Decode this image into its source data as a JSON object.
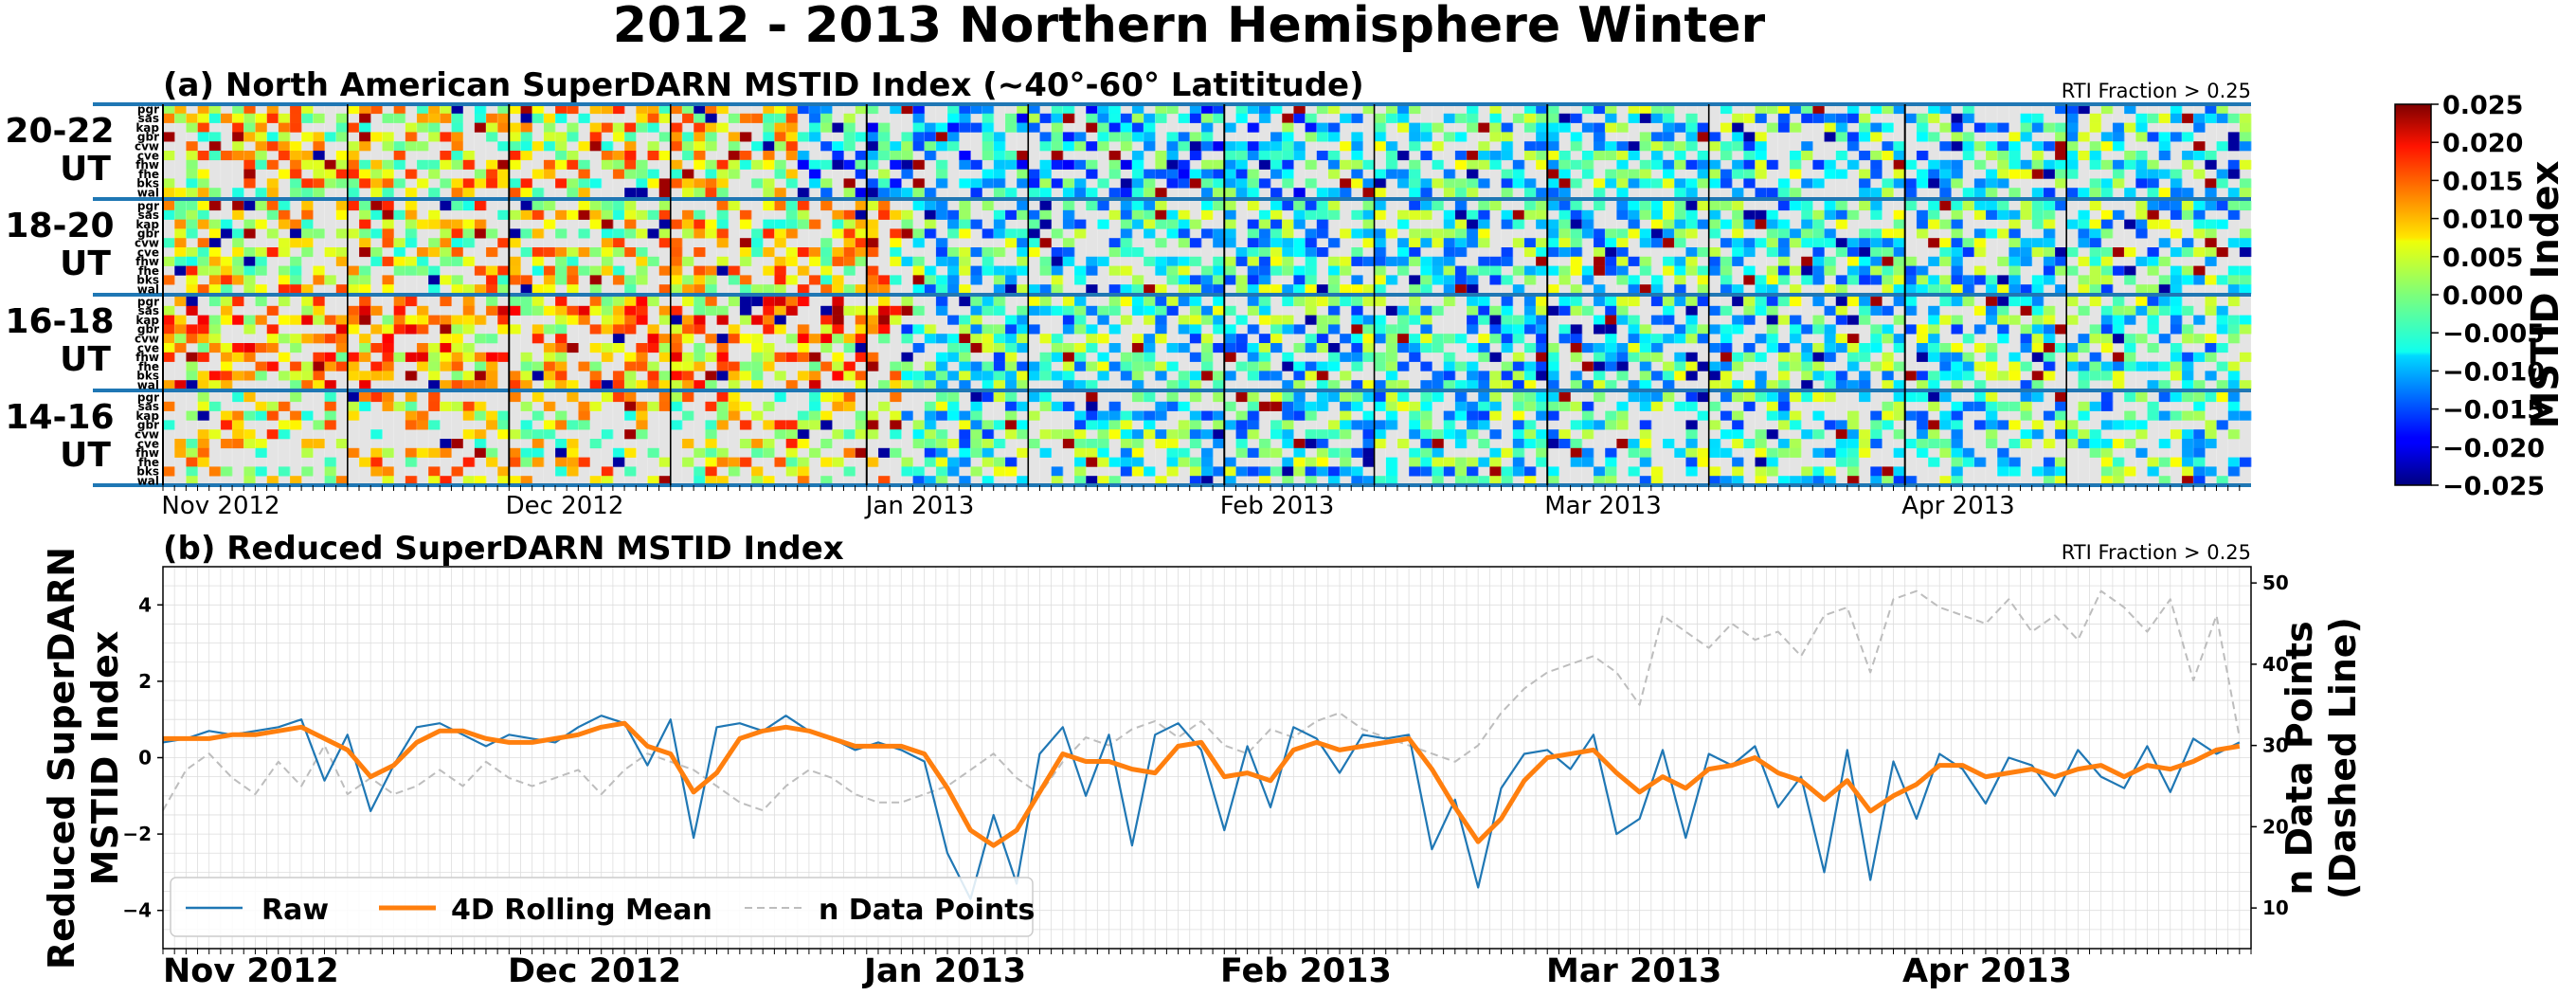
{
  "title": "2012 - 2013 Northern Hemisphere Winter",
  "chart_data": [
    {
      "type": "heatmap",
      "title": "(a) North American SuperDARN MSTID Index (~40°-60° Latititude)",
      "annotation": "RTI Fraction > 0.25",
      "date_range": [
        "2012-11-01",
        "2013-04-30"
      ],
      "x_tick_labels": [
        "Nov 2012",
        "Dec 2012",
        "Jan 2013",
        "Feb 2013",
        "Mar 2013",
        "Apr 2013"
      ],
      "radar_labels": [
        "pgr",
        "sas",
        "kap",
        "gbr",
        "cvw",
        "cve",
        "fhw",
        "fhe",
        "bks",
        "wal"
      ],
      "row_groups": [
        {
          "label_top": "20-22",
          "label_bottom": "UT"
        },
        {
          "label_top": "18-20",
          "label_bottom": "UT"
        },
        {
          "label_top": "16-18",
          "label_bottom": "UT"
        },
        {
          "label_top": "14-16",
          "label_bottom": "UT"
        }
      ],
      "colorbar": {
        "label": "MSTID Index",
        "colormap": "jet",
        "range": [
          -0.025,
          0.025
        ],
        "ticks": [
          "0.025",
          "0.020",
          "0.015",
          "0.010",
          "0.005",
          "0.000",
          "−0.005",
          "−0.010",
          "−0.015",
          "−0.020",
          "−0.025"
        ]
      },
      "missing_color": "#e4e4e4",
      "note": "Cell values are shown as a color field; individual cell values are not legible at this resolution."
    },
    {
      "type": "line",
      "title": "(b) Reduced SuperDARN MSTID Index",
      "annotation": "RTI Fraction > 0.25",
      "ylabel": "Reduced SuperDARN MSTID Index",
      "y2label": "n Data Points (Dashed Line)",
      "ylim": [
        -5,
        5
      ],
      "y2lim": [
        5,
        52
      ],
      "y_ticks": [
        "4",
        "2",
        "0",
        "−2",
        "−4"
      ],
      "y2_ticks": [
        "50",
        "40",
        "30",
        "20",
        "10"
      ],
      "x_tick_labels": [
        "Nov 2012",
        "Dec 2012",
        "Jan 2013",
        "Feb 2013",
        "Mar 2013",
        "Apr 2013"
      ],
      "grid": true,
      "legend_position": "lower-left",
      "series": [
        {
          "name": "Raw",
          "color": "#1f77b4",
          "style": "solid",
          "x": [
            "2012-11-01",
            "2012-11-03",
            "2012-11-05",
            "2012-11-07",
            "2012-11-09",
            "2012-11-11",
            "2012-11-13",
            "2012-11-15",
            "2012-11-17",
            "2012-11-19",
            "2012-11-21",
            "2012-11-23",
            "2012-11-25",
            "2012-11-27",
            "2012-11-29",
            "2012-12-01",
            "2012-12-03",
            "2012-12-05",
            "2012-12-07",
            "2012-12-09",
            "2012-12-11",
            "2012-12-13",
            "2012-12-15",
            "2012-12-17",
            "2012-12-19",
            "2012-12-21",
            "2012-12-23",
            "2012-12-25",
            "2012-12-27",
            "2012-12-29",
            "2012-12-31",
            "2013-01-02",
            "2013-01-04",
            "2013-01-06",
            "2013-01-08",
            "2013-01-10",
            "2013-01-12",
            "2013-01-14",
            "2013-01-16",
            "2013-01-18",
            "2013-01-20",
            "2013-01-22",
            "2013-01-24",
            "2013-01-26",
            "2013-01-28",
            "2013-01-30",
            "2013-02-01",
            "2013-02-03",
            "2013-02-05",
            "2013-02-07",
            "2013-02-09",
            "2013-02-11",
            "2013-02-13",
            "2013-02-15",
            "2013-02-17",
            "2013-02-19",
            "2013-02-21",
            "2013-02-23",
            "2013-02-25",
            "2013-02-27",
            "2013-03-01",
            "2013-03-03",
            "2013-03-05",
            "2013-03-07",
            "2013-03-09",
            "2013-03-11",
            "2013-03-13",
            "2013-03-15",
            "2013-03-17",
            "2013-03-19",
            "2013-03-21",
            "2013-03-23",
            "2013-03-25",
            "2013-03-27",
            "2013-03-29",
            "2013-03-31",
            "2013-04-02",
            "2013-04-04",
            "2013-04-06",
            "2013-04-08",
            "2013-04-10",
            "2013-04-12",
            "2013-04-14",
            "2013-04-16",
            "2013-04-18",
            "2013-04-20",
            "2013-04-22",
            "2013-04-24",
            "2013-04-26",
            "2013-04-28",
            "2013-04-30"
          ],
          "y": [
            0.4,
            0.5,
            0.7,
            0.6,
            0.7,
            0.8,
            1.0,
            -0.6,
            0.6,
            -1.4,
            -0.2,
            0.8,
            0.9,
            0.6,
            0.3,
            0.6,
            0.5,
            0.4,
            0.8,
            1.1,
            0.9,
            -0.2,
            1.0,
            -2.1,
            0.8,
            0.9,
            0.7,
            1.1,
            0.7,
            0.5,
            0.2,
            0.4,
            0.2,
            -0.1,
            -2.5,
            -3.7,
            -1.5,
            -3.3,
            0.1,
            0.8,
            -1.0,
            0.6,
            -2.3,
            0.6,
            0.9,
            0.2,
            -1.9,
            0.3,
            -1.3,
            0.8,
            0.5,
            -0.4,
            0.6,
            0.5,
            0.6,
            -2.4,
            -1.1,
            -3.4,
            -0.8,
            0.1,
            0.2,
            -0.3,
            0.6,
            -2.0,
            -1.6,
            0.2,
            -2.1,
            0.1,
            -0.2,
            0.3,
            -1.3,
            -0.5,
            -3.0,
            0.2,
            -3.2,
            -0.1,
            -1.6,
            0.1,
            -0.3,
            -1.2,
            0.0,
            -0.2,
            -1.0,
            0.2,
            -0.5,
            -0.8,
            0.3,
            -0.9,
            0.5,
            0.1,
            0.4
          ]
        },
        {
          "name": "4D Rolling Mean",
          "color": "#ff7f0e",
          "style": "solid",
          "x": [
            "2012-11-01",
            "2012-11-03",
            "2012-11-05",
            "2012-11-07",
            "2012-11-09",
            "2012-11-11",
            "2012-11-13",
            "2012-11-15",
            "2012-11-17",
            "2012-11-19",
            "2012-11-21",
            "2012-11-23",
            "2012-11-25",
            "2012-11-27",
            "2012-11-29",
            "2012-12-01",
            "2012-12-03",
            "2012-12-05",
            "2012-12-07",
            "2012-12-09",
            "2012-12-11",
            "2012-12-13",
            "2012-12-15",
            "2012-12-17",
            "2012-12-19",
            "2012-12-21",
            "2012-12-23",
            "2012-12-25",
            "2012-12-27",
            "2012-12-29",
            "2012-12-31",
            "2013-01-02",
            "2013-01-04",
            "2013-01-06",
            "2013-01-08",
            "2013-01-10",
            "2013-01-12",
            "2013-01-14",
            "2013-01-16",
            "2013-01-18",
            "2013-01-20",
            "2013-01-22",
            "2013-01-24",
            "2013-01-26",
            "2013-01-28",
            "2013-01-30",
            "2013-02-01",
            "2013-02-03",
            "2013-02-05",
            "2013-02-07",
            "2013-02-09",
            "2013-02-11",
            "2013-02-13",
            "2013-02-15",
            "2013-02-17",
            "2013-02-19",
            "2013-02-21",
            "2013-02-23",
            "2013-02-25",
            "2013-02-27",
            "2013-03-01",
            "2013-03-03",
            "2013-03-05",
            "2013-03-07",
            "2013-03-09",
            "2013-03-11",
            "2013-03-13",
            "2013-03-15",
            "2013-03-17",
            "2013-03-19",
            "2013-03-21",
            "2013-03-23",
            "2013-03-25",
            "2013-03-27",
            "2013-03-29",
            "2013-03-31",
            "2013-04-02",
            "2013-04-04",
            "2013-04-06",
            "2013-04-08",
            "2013-04-10",
            "2013-04-12",
            "2013-04-14",
            "2013-04-16",
            "2013-04-18",
            "2013-04-20",
            "2013-04-22",
            "2013-04-24",
            "2013-04-26",
            "2013-04-28",
            "2013-04-30"
          ],
          "y": [
            0.5,
            0.5,
            0.5,
            0.6,
            0.6,
            0.7,
            0.8,
            0.5,
            0.2,
            -0.5,
            -0.2,
            0.4,
            0.7,
            0.7,
            0.5,
            0.4,
            0.4,
            0.5,
            0.6,
            0.8,
            0.9,
            0.3,
            0.1,
            -0.9,
            -0.4,
            0.5,
            0.7,
            0.8,
            0.7,
            0.5,
            0.3,
            0.3,
            0.3,
            0.1,
            -0.8,
            -1.9,
            -2.3,
            -1.9,
            -0.9,
            0.1,
            -0.1,
            -0.1,
            -0.3,
            -0.4,
            0.3,
            0.4,
            -0.5,
            -0.4,
            -0.6,
            0.2,
            0.4,
            0.2,
            0.3,
            0.4,
            0.5,
            -0.3,
            -1.3,
            -2.2,
            -1.6,
            -0.6,
            0.0,
            0.1,
            0.2,
            -0.4,
            -0.9,
            -0.5,
            -0.8,
            -0.3,
            -0.2,
            0.0,
            -0.4,
            -0.6,
            -1.1,
            -0.6,
            -1.4,
            -1.0,
            -0.7,
            -0.2,
            -0.2,
            -0.5,
            -0.4,
            -0.3,
            -0.5,
            -0.3,
            -0.2,
            -0.5,
            -0.2,
            -0.3,
            -0.1,
            0.2,
            0.3
          ]
        },
        {
          "name": "n Data Points",
          "color": "#bdbdbd",
          "style": "dashed",
          "axis": "right",
          "x": [
            "2012-11-01",
            "2012-11-03",
            "2012-11-05",
            "2012-11-07",
            "2012-11-09",
            "2012-11-11",
            "2012-11-13",
            "2012-11-15",
            "2012-11-17",
            "2012-11-19",
            "2012-11-21",
            "2012-11-23",
            "2012-11-25",
            "2012-11-27",
            "2012-11-29",
            "2012-12-01",
            "2012-12-03",
            "2012-12-05",
            "2012-12-07",
            "2012-12-09",
            "2012-12-11",
            "2012-12-13",
            "2012-12-15",
            "2012-12-17",
            "2012-12-19",
            "2012-12-21",
            "2012-12-23",
            "2012-12-25",
            "2012-12-27",
            "2012-12-29",
            "2012-12-31",
            "2013-01-02",
            "2013-01-04",
            "2013-01-06",
            "2013-01-08",
            "2013-01-10",
            "2013-01-12",
            "2013-01-14",
            "2013-01-16",
            "2013-01-18",
            "2013-01-20",
            "2013-01-22",
            "2013-01-24",
            "2013-01-26",
            "2013-01-28",
            "2013-01-30",
            "2013-02-01",
            "2013-02-03",
            "2013-02-05",
            "2013-02-07",
            "2013-02-09",
            "2013-02-11",
            "2013-02-13",
            "2013-02-15",
            "2013-02-17",
            "2013-02-19",
            "2013-02-21",
            "2013-02-23",
            "2013-02-25",
            "2013-02-27",
            "2013-03-01",
            "2013-03-03",
            "2013-03-05",
            "2013-03-07",
            "2013-03-09",
            "2013-03-11",
            "2013-03-13",
            "2013-03-15",
            "2013-03-17",
            "2013-03-19",
            "2013-03-21",
            "2013-03-23",
            "2013-03-25",
            "2013-03-27",
            "2013-03-29",
            "2013-03-31",
            "2013-04-02",
            "2013-04-04",
            "2013-04-06",
            "2013-04-08",
            "2013-04-10",
            "2013-04-12",
            "2013-04-14",
            "2013-04-16",
            "2013-04-18",
            "2013-04-20",
            "2013-04-22",
            "2013-04-24",
            "2013-04-26",
            "2013-04-28",
            "2013-04-30"
          ],
          "y": [
            22,
            27,
            29,
            26,
            24,
            28,
            25,
            30,
            24,
            26,
            24,
            25,
            27,
            25,
            28,
            26,
            25,
            26,
            27,
            24,
            27,
            29,
            28,
            27,
            25,
            23,
            22,
            25,
            27,
            26,
            24,
            23,
            23,
            24,
            25,
            27,
            29,
            26,
            24,
            28,
            31,
            30,
            32,
            33,
            31,
            33,
            30,
            29,
            32,
            31,
            33,
            34,
            32,
            31,
            30,
            29,
            28,
            30,
            34,
            37,
            39,
            40,
            41,
            39,
            35,
            46,
            44,
            42,
            45,
            43,
            44,
            41,
            46,
            47,
            39,
            48,
            49,
            47,
            46,
            45,
            48,
            44,
            46,
            43,
            49,
            47,
            44,
            48,
            38,
            46,
            31
          ]
        }
      ]
    }
  ]
}
